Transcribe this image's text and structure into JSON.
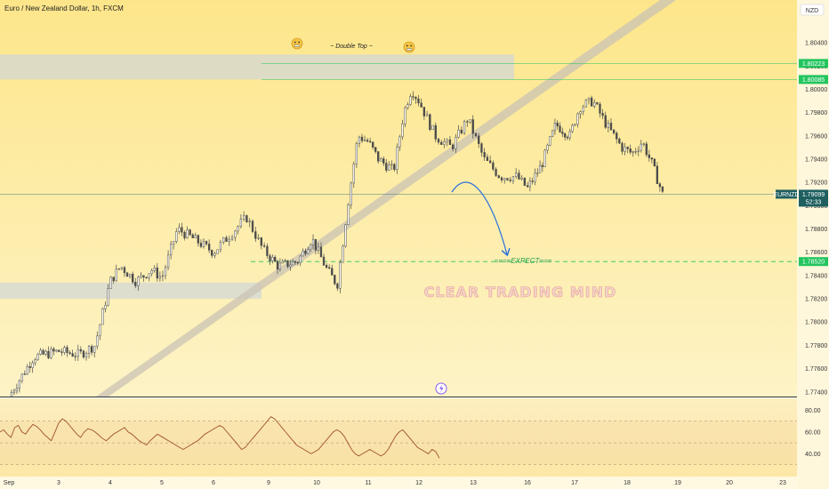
{
  "header": {
    "symbol_title": "Euro / New Zealand Dollar, 1h, FXCM",
    "currency_badge": "NZD"
  },
  "chart_data": {
    "type": "candlestick",
    "symbol": "EURNZD",
    "interval": "1h",
    "source": "FXCM",
    "ylim": [
      1.7736,
      1.806
    ],
    "y_ticks": [
      "1.80400",
      "1.80200",
      "1.80000",
      "1.79800",
      "1.79600",
      "1.79400",
      "1.79200",
      "1.79000",
      "1.78800",
      "1.78600",
      "1.78400",
      "1.78200",
      "1.78000",
      "1.77800",
      "1.77600",
      "1.77400"
    ],
    "x_ticks": [
      "Sep",
      "3",
      "4",
      "5",
      "6",
      "9",
      "10",
      "11",
      "12",
      "13",
      "16",
      "17",
      "18",
      "19",
      "20",
      "23"
    ],
    "close_path": [
      {
        "day": 1.0,
        "price": 1.7736
      },
      {
        "day": 1.5,
        "price": 1.777
      },
      {
        "day": 2.0,
        "price": 1.7775
      },
      {
        "day": 2.4,
        "price": 1.7772
      },
      {
        "day": 2.7,
        "price": 1.778
      },
      {
        "day": 3.0,
        "price": 1.7835
      },
      {
        "day": 3.2,
        "price": 1.7848
      },
      {
        "day": 3.5,
        "price": 1.7835
      },
      {
        "day": 3.8,
        "price": 1.7845
      },
      {
        "day": 4.0,
        "price": 1.7838
      },
      {
        "day": 4.3,
        "price": 1.788
      },
      {
        "day": 4.6,
        "price": 1.7872
      },
      {
        "day": 5.0,
        "price": 1.786
      },
      {
        "day": 5.3,
        "price": 1.7875
      },
      {
        "day": 5.6,
        "price": 1.789
      },
      {
        "day": 5.9,
        "price": 1.7862
      },
      {
        "day": 6.2,
        "price": 1.7848
      },
      {
        "day": 6.6,
        "price": 1.7852
      },
      {
        "day": 6.9,
        "price": 1.7872
      },
      {
        "day": 7.2,
        "price": 1.7845
      },
      {
        "day": 7.4,
        "price": 1.7832
      },
      {
        "day": 7.6,
        "price": 1.79
      },
      {
        "day": 7.8,
        "price": 1.796
      },
      {
        "day": 8.0,
        "price": 1.7955
      },
      {
        "day": 8.2,
        "price": 1.794
      },
      {
        "day": 8.5,
        "price": 1.793
      },
      {
        "day": 8.7,
        "price": 1.798
      },
      {
        "day": 8.85,
        "price": 1.8
      },
      {
        "day": 9.0,
        "price": 1.799
      },
      {
        "day": 9.3,
        "price": 1.796
      },
      {
        "day": 9.6,
        "price": 1.795
      },
      {
        "day": 9.9,
        "price": 1.7975
      },
      {
        "day": 10.2,
        "price": 1.794
      },
      {
        "day": 10.5,
        "price": 1.7925
      },
      {
        "day": 10.8,
        "price": 1.7925
      },
      {
        "day": 11.0,
        "price": 1.7915
      },
      {
        "day": 11.3,
        "price": 1.7935
      },
      {
        "day": 11.6,
        "price": 1.797
      },
      {
        "day": 11.9,
        "price": 1.796
      },
      {
        "day": 12.1,
        "price": 1.7985
      },
      {
        "day": 12.35,
        "price": 1.799
      },
      {
        "day": 12.6,
        "price": 1.797
      },
      {
        "day": 12.9,
        "price": 1.795
      },
      {
        "day": 13.1,
        "price": 1.7945
      },
      {
        "day": 13.3,
        "price": 1.7955
      },
      {
        "day": 13.5,
        "price": 1.7935
      },
      {
        "day": 13.7,
        "price": 1.791
      }
    ],
    "last_price": {
      "symbol": "EURNZD",
      "price": "1.79099",
      "countdown": "52:33",
      "value": 1.79099
    },
    "levels": [
      {
        "label": "1.80223",
        "value": 1.80223,
        "color": "#22c55e"
      },
      {
        "label": "1.80085",
        "value": 1.80085,
        "color": "#22c55e"
      },
      {
        "label": "1.78520",
        "value": 1.7852,
        "color": "#22c55e"
      }
    ],
    "annotations": {
      "double_top": "Double Top",
      "expect": "====EXPECT===",
      "watermark": "CLEAR TRADING MIND"
    },
    "rsi": {
      "ylim": [
        20,
        90
      ],
      "y_ticks": [
        "80.00",
        "60.00",
        "40.00"
      ],
      "upper_band": 70,
      "lower_band": 30,
      "mid": 50,
      "values": [
        60,
        62,
        58,
        55,
        64,
        66,
        60,
        58,
        63,
        67,
        65,
        62,
        58,
        55,
        52,
        60,
        68,
        72,
        70,
        66,
        62,
        58,
        55,
        60,
        63,
        62,
        60,
        57,
        54,
        52,
        55,
        58,
        60,
        62,
        64,
        60,
        58,
        55,
        52,
        50,
        48,
        52,
        55,
        58,
        56,
        54,
        52,
        50,
        48,
        46,
        44,
        46,
        48,
        50,
        52,
        55,
        58,
        60,
        62,
        64,
        66,
        64,
        60,
        56,
        52,
        48,
        44,
        46,
        50,
        54,
        58,
        62,
        66,
        70,
        74,
        72,
        68,
        64,
        60,
        56,
        52,
        48,
        46,
        44,
        42,
        40,
        42,
        44,
        48,
        52,
        56,
        60,
        62,
        60,
        56,
        50,
        44,
        40,
        38,
        40,
        42,
        44,
        42,
        40,
        38,
        40,
        44,
        50,
        56,
        60,
        62,
        58,
        54,
        50,
        46,
        44,
        42,
        40,
        44,
        42,
        36
      ]
    },
    "colors": {
      "candle": "#4b4b4b",
      "band": "#c9c3b4",
      "zone": "#cfd6d8",
      "arrow": "#2a6fdb",
      "rsi_line": "#a0522d",
      "dashed_level": "#22c55e"
    }
  }
}
